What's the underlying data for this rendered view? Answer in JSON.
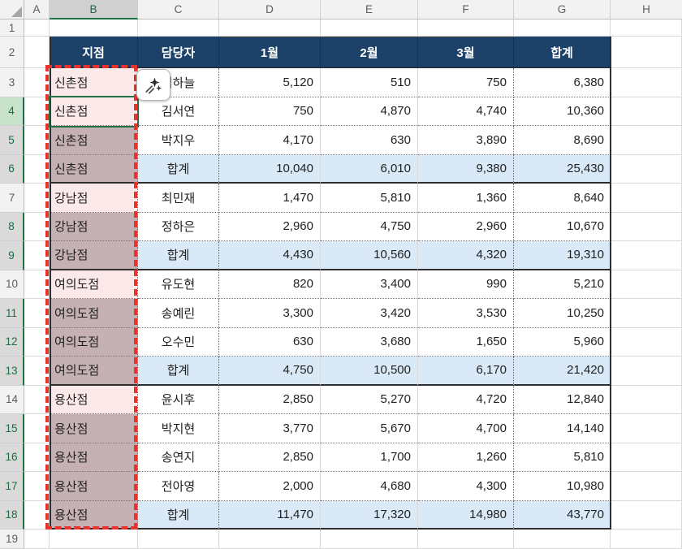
{
  "column_headers": [
    "A",
    "B",
    "C",
    "D",
    "E",
    "F",
    "G",
    "H"
  ],
  "row_numbers": [
    "1",
    "2",
    "3",
    "4",
    "5",
    "6",
    "7",
    "8",
    "9",
    "10",
    "11",
    "12",
    "13",
    "14",
    "15",
    "16",
    "17",
    "18",
    "19"
  ],
  "selection": {
    "selected_column": "B",
    "active_cell": "B4",
    "active_row": 4,
    "selected_row_numbers": [
      4,
      5,
      6,
      8,
      9,
      11,
      12,
      13,
      15,
      16,
      17,
      18
    ]
  },
  "table": {
    "header": {
      "branch": "지점",
      "person": "담당자",
      "jan": "1월",
      "feb": "2월",
      "mar": "3월",
      "total": "합계"
    },
    "group_end_rows": [
      6,
      9,
      13,
      18
    ],
    "rows": [
      {
        "row": 3,
        "branch": "신촌점",
        "person": "김하늘",
        "jan": "5,120",
        "feb": "510",
        "mar": "750",
        "total": "6,380",
        "subtotal": false,
        "highlight": "pink"
      },
      {
        "row": 4,
        "branch": "신촌점",
        "person": "김서연",
        "jan": "750",
        "feb": "4,870",
        "mar": "4,740",
        "total": "10,360",
        "subtotal": false,
        "highlight": "pink"
      },
      {
        "row": 5,
        "branch": "신촌점",
        "person": "박지우",
        "jan": "4,170",
        "feb": "630",
        "mar": "3,890",
        "total": "8,690",
        "subtotal": false,
        "highlight": "mauve"
      },
      {
        "row": 6,
        "branch": "신촌점",
        "person": "합계",
        "jan": "10,040",
        "feb": "6,010",
        "mar": "9,380",
        "total": "25,430",
        "subtotal": true,
        "highlight": "mauve"
      },
      {
        "row": 7,
        "branch": "강남점",
        "person": "최민재",
        "jan": "1,470",
        "feb": "5,810",
        "mar": "1,360",
        "total": "8,640",
        "subtotal": false,
        "highlight": "pink"
      },
      {
        "row": 8,
        "branch": "강남점",
        "person": "정하은",
        "jan": "2,960",
        "feb": "4,750",
        "mar": "2,960",
        "total": "10,670",
        "subtotal": false,
        "highlight": "mauve"
      },
      {
        "row": 9,
        "branch": "강남점",
        "person": "합계",
        "jan": "4,430",
        "feb": "10,560",
        "mar": "4,320",
        "total": "19,310",
        "subtotal": true,
        "highlight": "mauve"
      },
      {
        "row": 10,
        "branch": "여의도점",
        "person": "유도현",
        "jan": "820",
        "feb": "3,400",
        "mar": "990",
        "total": "5,210",
        "subtotal": false,
        "highlight": "pink"
      },
      {
        "row": 11,
        "branch": "여의도점",
        "person": "송예린",
        "jan": "3,300",
        "feb": "3,420",
        "mar": "3,530",
        "total": "10,250",
        "subtotal": false,
        "highlight": "mauve"
      },
      {
        "row": 12,
        "branch": "여의도점",
        "person": "오수민",
        "jan": "630",
        "feb": "3,680",
        "mar": "1,650",
        "total": "5,960",
        "subtotal": false,
        "highlight": "mauve"
      },
      {
        "row": 13,
        "branch": "여의도점",
        "person": "합계",
        "jan": "4,750",
        "feb": "10,500",
        "mar": "6,170",
        "total": "21,420",
        "subtotal": true,
        "highlight": "mauve"
      },
      {
        "row": 14,
        "branch": "용산점",
        "person": "윤시후",
        "jan": "2,850",
        "feb": "5,270",
        "mar": "4,720",
        "total": "12,840",
        "subtotal": false,
        "highlight": "pink"
      },
      {
        "row": 15,
        "branch": "용산점",
        "person": "박지현",
        "jan": "3,770",
        "feb": "5,670",
        "mar": "4,700",
        "total": "14,140",
        "subtotal": false,
        "highlight": "mauve"
      },
      {
        "row": 16,
        "branch": "용산점",
        "person": "송연지",
        "jan": "2,850",
        "feb": "1,700",
        "mar": "1,260",
        "total": "5,810",
        "subtotal": false,
        "highlight": "mauve"
      },
      {
        "row": 17,
        "branch": "용산점",
        "person": "전아영",
        "jan": "2,000",
        "feb": "4,680",
        "mar": "4,300",
        "total": "10,980",
        "subtotal": false,
        "highlight": "mauve"
      },
      {
        "row": 18,
        "branch": "용산점",
        "person": "합계",
        "jan": "11,470",
        "feb": "17,320",
        "mar": "14,980",
        "total": "43,770",
        "subtotal": true,
        "highlight": "mauve"
      }
    ]
  },
  "icons": {
    "select_all": "select-all-triangle",
    "quick_analysis": "sparkles"
  },
  "colors": {
    "header_navy": "#1b4169",
    "subtotal_blue": "#d9e9f8",
    "highlight_pink": "#fbe8e8",
    "selected_mauve": "#c5b1b4",
    "annotation_red": "#e9322d",
    "excel_green": "#217346"
  }
}
